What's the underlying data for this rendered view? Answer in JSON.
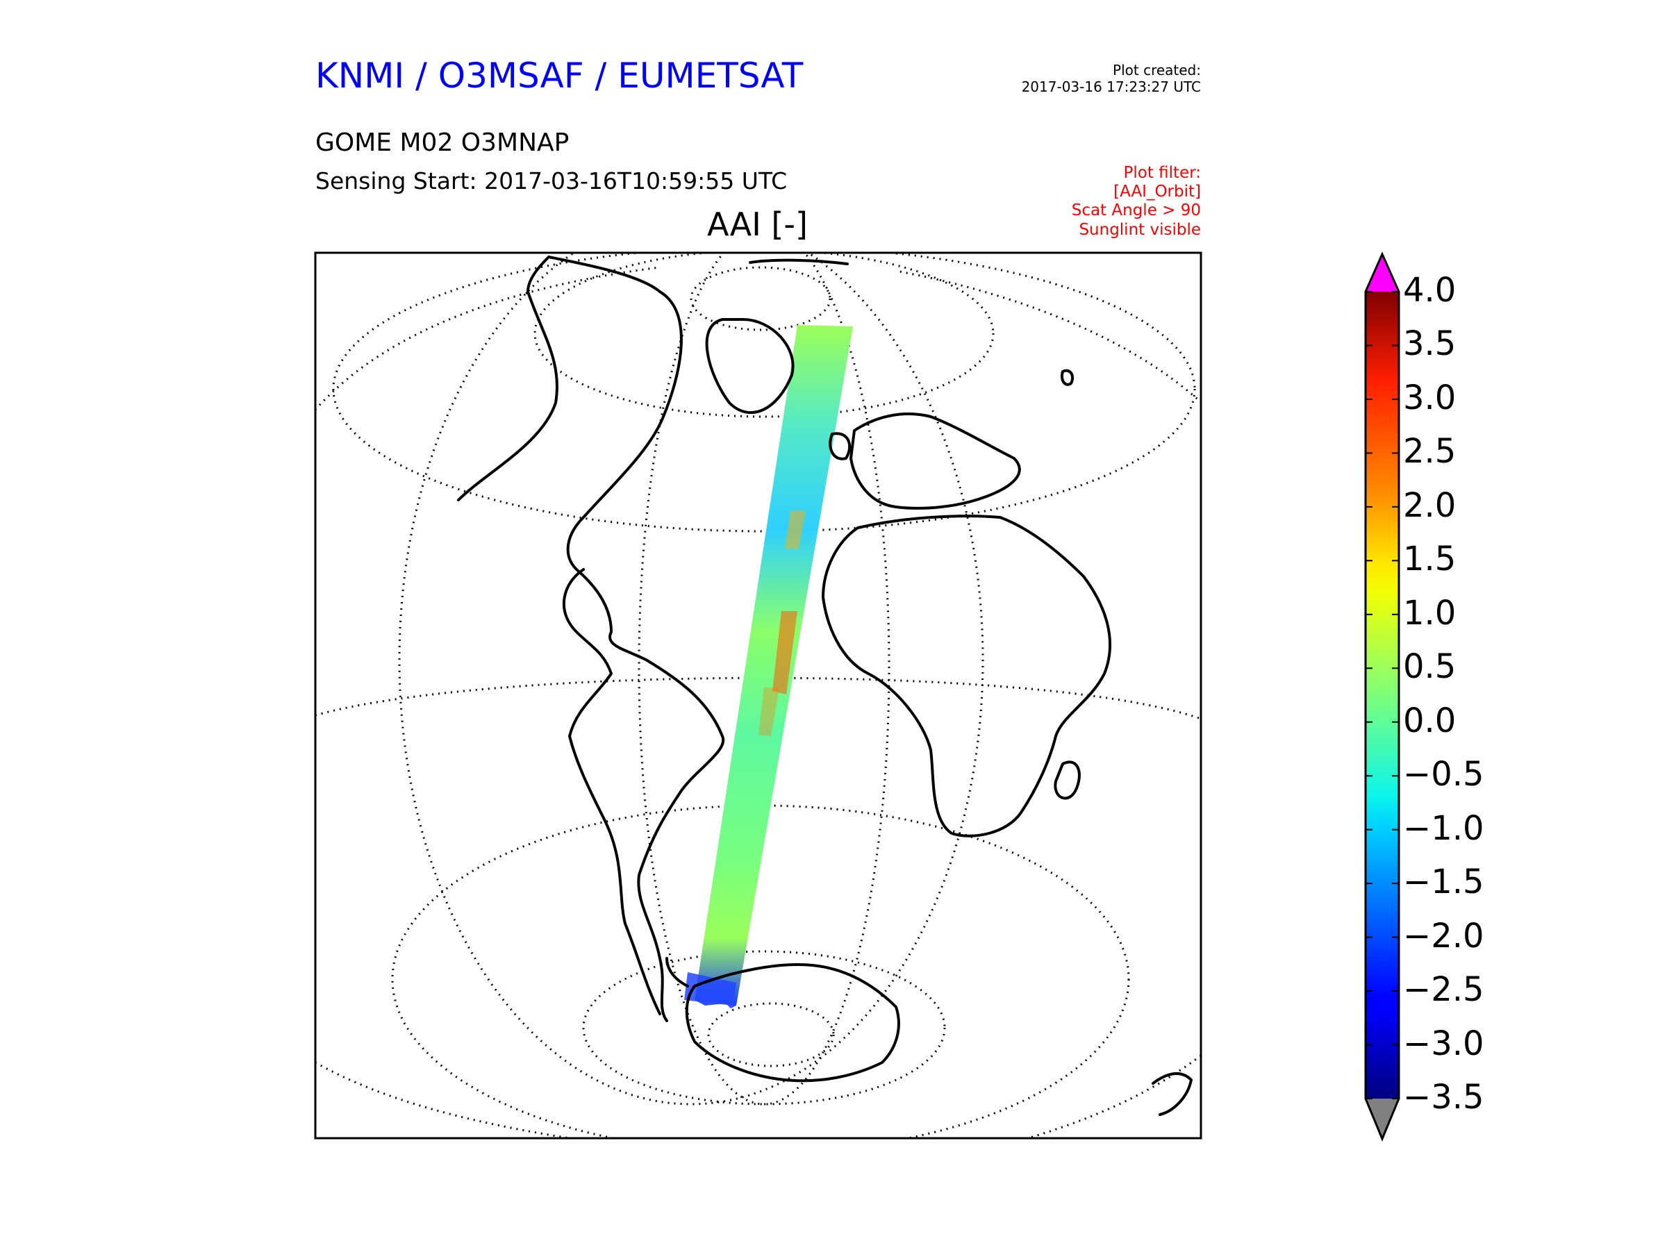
{
  "header": {
    "organization": "KNMI / O3MSAF / EUMETSAT",
    "created_label": "Plot created:",
    "created_date": "2017-03-16 17:23:27 UTC",
    "product": "GOME M02 O3MNAP",
    "sensing_start": "Sensing Start: 2017-03-16T10:59:55 UTC",
    "filters": [
      "Plot filter:",
      "[AAI_Orbit]",
      "Scat Angle > 90",
      "Sunglint visible"
    ]
  },
  "plot": {
    "title": "AAI [-]",
    "map_projection": "orthographic",
    "graticule": "dotted",
    "coastlines": true
  },
  "colorbar": {
    "min": -3.5,
    "max": 4.0,
    "ticks": [
      "4.0",
      "3.5",
      "3.0",
      "2.5",
      "2.0",
      "1.5",
      "1.0",
      "0.5",
      "0.0",
      "−0.5",
      "−1.0",
      "−1.5",
      "−2.0",
      "−2.5",
      "−3.0",
      "−3.5"
    ],
    "tick_values": [
      4.0,
      3.5,
      3.0,
      2.5,
      2.0,
      1.5,
      1.0,
      0.5,
      0.0,
      -0.5,
      -1.0,
      -1.5,
      -2.0,
      -2.5,
      -3.0,
      -3.5
    ],
    "colormap": "jet",
    "over_color": "#ff00ff",
    "under_color": "#808080"
  }
}
